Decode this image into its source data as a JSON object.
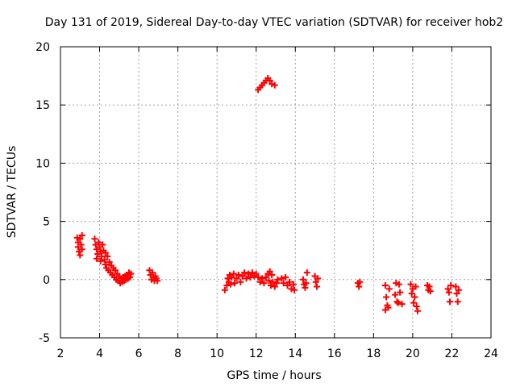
{
  "chart_data": {
    "type": "scatter",
    "title": "Day 131 of 2019, Sidereal Day-to-day VTEC variation (SDTVAR) for receiver hob2",
    "xlabel": "GPS time / hours",
    "ylabel": "SDTVAR / TECUs",
    "xlim": [
      2,
      24
    ],
    "ylim": [
      -5,
      20
    ],
    "xticks": [
      "2",
      "4",
      "6",
      "8",
      "10",
      "12",
      "14",
      "16",
      "18",
      "20",
      "22",
      "24"
    ],
    "yticks": [
      "-5",
      "0",
      "5",
      "10",
      "15",
      "20"
    ],
    "grid": true,
    "marker": "plus",
    "color": "#ff0000",
    "series": [
      {
        "name": "SDTVAR",
        "points": [
          [
            2.85,
            3.6
          ],
          [
            2.9,
            3.2
          ],
          [
            2.9,
            2.8
          ],
          [
            2.95,
            2.4
          ],
          [
            3.0,
            3.5
          ],
          [
            3.0,
            2.1
          ],
          [
            3.05,
            3.0
          ],
          [
            3.1,
            2.6
          ],
          [
            3.1,
            3.8
          ],
          [
            3.75,
            3.5
          ],
          [
            3.8,
            3.0
          ],
          [
            3.85,
            2.6
          ],
          [
            3.85,
            1.8
          ],
          [
            3.9,
            2.2
          ],
          [
            3.95,
            3.2
          ],
          [
            4.0,
            2.8
          ],
          [
            4.05,
            2.4
          ],
          [
            4.05,
            1.6
          ],
          [
            4.1,
            2.0
          ],
          [
            4.15,
            3.0
          ],
          [
            4.2,
            2.5
          ],
          [
            4.25,
            1.7
          ],
          [
            4.3,
            1.3
          ],
          [
            4.3,
            2.3
          ],
          [
            4.35,
            1.0
          ],
          [
            4.4,
            2.0
          ],
          [
            4.45,
            0.8
          ],
          [
            4.5,
            1.5
          ],
          [
            4.55,
            0.6
          ],
          [
            4.6,
            1.2
          ],
          [
            4.65,
            0.4
          ],
          [
            4.7,
            1.0
          ],
          [
            4.75,
            0.2
          ],
          [
            4.8,
            0.8
          ],
          [
            4.85,
            0.0
          ],
          [
            4.9,
            0.5
          ],
          [
            4.95,
            -0.1
          ],
          [
            5.0,
            0.3
          ],
          [
            5.05,
            -0.3
          ],
          [
            5.1,
            0.1
          ],
          [
            5.15,
            -0.2
          ],
          [
            5.2,
            0.2
          ],
          [
            5.25,
            -0.1
          ],
          [
            5.3,
            0.3
          ],
          [
            5.35,
            0.0
          ],
          [
            5.4,
            0.4
          ],
          [
            5.45,
            0.1
          ],
          [
            5.5,
            0.6
          ],
          [
            5.55,
            0.2
          ],
          [
            5.6,
            0.5
          ],
          [
            6.55,
            0.8
          ],
          [
            6.6,
            0.4
          ],
          [
            6.65,
            0.0
          ],
          [
            6.7,
            0.6
          ],
          [
            6.75,
            0.2
          ],
          [
            6.8,
            -0.1
          ],
          [
            6.85,
            0.3
          ],
          [
            6.9,
            0.1
          ],
          [
            6.95,
            -0.1
          ],
          [
            10.4,
            -0.9
          ],
          [
            10.5,
            -0.5
          ],
          [
            10.55,
            0.1
          ],
          [
            10.6,
            -0.2
          ],
          [
            10.65,
            0.4
          ],
          [
            10.7,
            -0.4
          ],
          [
            10.75,
            0.2
          ],
          [
            10.85,
            0.5
          ],
          [
            10.9,
            -0.3
          ],
          [
            11.0,
            0.1
          ],
          [
            11.1,
            0.4
          ],
          [
            11.2,
            -0.2
          ],
          [
            11.3,
            0.3
          ],
          [
            11.4,
            0.6
          ],
          [
            11.5,
            0.1
          ],
          [
            11.6,
            0.5
          ],
          [
            11.7,
            0.2
          ],
          [
            11.8,
            0.6
          ],
          [
            11.9,
            0.3
          ],
          [
            12.0,
            0.5
          ],
          [
            12.1,
            0.2
          ],
          [
            12.2,
            -0.2
          ],
          [
            12.3,
            0.1
          ],
          [
            12.4,
            -0.3
          ],
          [
            12.5,
            0.2
          ],
          [
            12.6,
            0.5
          ],
          [
            12.7,
            0.7
          ],
          [
            12.8,
            0.4
          ],
          [
            12.1,
            16.3
          ],
          [
            12.2,
            16.5
          ],
          [
            12.3,
            16.7
          ],
          [
            12.4,
            16.9
          ],
          [
            12.5,
            17.1
          ],
          [
            12.6,
            17.3
          ],
          [
            12.7,
            17.1
          ],
          [
            12.8,
            16.8
          ],
          [
            12.95,
            16.7
          ],
          [
            12.65,
            -0.1
          ],
          [
            12.75,
            -0.5
          ],
          [
            12.85,
            -0.2
          ],
          [
            12.95,
            -0.6
          ],
          [
            13.05,
            -0.3
          ],
          [
            13.1,
            0.0
          ],
          [
            13.3,
            0.1
          ],
          [
            13.4,
            -0.3
          ],
          [
            13.5,
            0.2
          ],
          [
            13.6,
            -0.5
          ],
          [
            13.7,
            -0.2
          ],
          [
            13.8,
            -0.8
          ],
          [
            13.9,
            -0.4
          ],
          [
            13.95,
            -0.9
          ],
          [
            14.4,
            0.0
          ],
          [
            14.45,
            -0.4
          ],
          [
            14.5,
            -0.7
          ],
          [
            14.55,
            -0.3
          ],
          [
            14.6,
            0.6
          ],
          [
            15.0,
            0.3
          ],
          [
            15.05,
            -0.2
          ],
          [
            15.1,
            -0.6
          ],
          [
            15.15,
            0.1
          ],
          [
            17.2,
            -0.3
          ],
          [
            17.25,
            -0.6
          ],
          [
            17.3,
            -0.2
          ],
          [
            18.6,
            -0.5
          ],
          [
            18.65,
            -1.5
          ],
          [
            18.7,
            -2.2
          ],
          [
            18.6,
            -2.6
          ],
          [
            18.75,
            -2.4
          ],
          [
            18.8,
            -0.8
          ],
          [
            19.1,
            -1.3
          ],
          [
            19.15,
            -0.3
          ],
          [
            19.2,
            -1.9
          ],
          [
            19.25,
            -2.0
          ],
          [
            19.3,
            -0.4
          ],
          [
            19.35,
            -1.1
          ],
          [
            19.45,
            -2.1
          ],
          [
            19.9,
            -0.4
          ],
          [
            19.95,
            -1.2
          ],
          [
            20.0,
            -0.8
          ],
          [
            20.05,
            -2.0
          ],
          [
            20.1,
            -1.5
          ],
          [
            20.15,
            -0.6
          ],
          [
            20.2,
            -2.3
          ],
          [
            20.25,
            -2.7
          ],
          [
            20.75,
            -0.5
          ],
          [
            20.8,
            -0.9
          ],
          [
            20.85,
            -0.6
          ],
          [
            20.9,
            -1.0
          ],
          [
            21.8,
            -0.8
          ],
          [
            21.85,
            -1.1
          ],
          [
            21.9,
            -1.9
          ],
          [
            21.95,
            -0.5
          ],
          [
            22.2,
            -0.6
          ],
          [
            22.25,
            -1.2
          ],
          [
            22.3,
            -1.9
          ],
          [
            22.35,
            -0.9
          ]
        ]
      }
    ]
  }
}
